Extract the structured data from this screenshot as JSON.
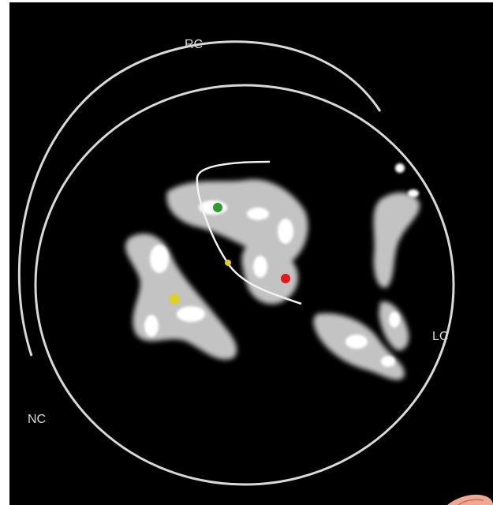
{
  "labels": {
    "rc": "RC",
    "lc": "LC",
    "nc": "NC"
  },
  "colors": {
    "background": "#000000",
    "ring": "#d9d9d9",
    "tissue": "#e8e8e8",
    "marker_green": "#2f9a2f",
    "marker_yellow": "#e0d020",
    "marker_red": "#e01818",
    "corner": "#f0a890"
  },
  "markers": [
    {
      "name": "green-marker",
      "color": "marker_green"
    },
    {
      "name": "yellow-marker-small",
      "color": "marker_yellow"
    },
    {
      "name": "red-marker",
      "color": "marker_red"
    },
    {
      "name": "yellow-marker-large",
      "color": "marker_yellow"
    }
  ]
}
